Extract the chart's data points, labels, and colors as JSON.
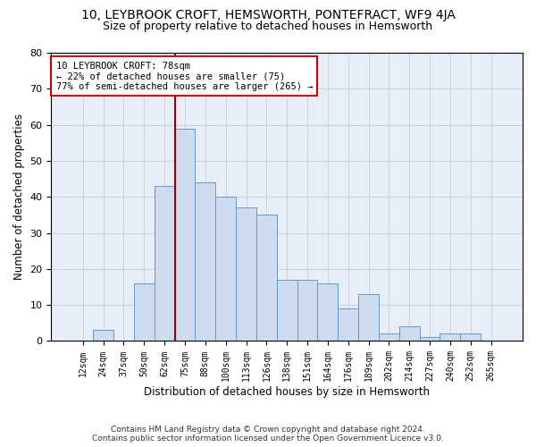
{
  "title1": "10, LEYBROOK CROFT, HEMSWORTH, PONTEFRACT, WF9 4JA",
  "title2": "Size of property relative to detached houses in Hemsworth",
  "xlabel": "Distribution of detached houses by size in Hemsworth",
  "ylabel": "Number of detached properties",
  "bar_labels": [
    "12sqm",
    "24sqm",
    "37sqm",
    "50sqm",
    "62sqm",
    "75sqm",
    "88sqm",
    "100sqm",
    "113sqm",
    "126sqm",
    "138sqm",
    "151sqm",
    "164sqm",
    "176sqm",
    "189sqm",
    "202sqm",
    "214sqm",
    "227sqm",
    "240sqm",
    "252sqm",
    "265sqm"
  ],
  "bar_heights": [
    0,
    3,
    0,
    16,
    43,
    59,
    44,
    40,
    37,
    35,
    17,
    17,
    16,
    9,
    13,
    2,
    4,
    1,
    2,
    2,
    0
  ],
  "bar_color": "#cddcef",
  "bar_edge_color": "#6699cc",
  "grid_color": "#c8d4e6",
  "background_color": "#e8eef8",
  "vline_x_index": 5,
  "vline_color": "#990000",
  "annotation_lines": [
    "10 LEYBROOK CROFT: 78sqm",
    "← 22% of detached houses are smaller (75)",
    "77% of semi-detached houses are larger (265) →"
  ],
  "annotation_box_color": "#ffffff",
  "annotation_box_edge": "#cc0000",
  "ylim": [
    0,
    80
  ],
  "yticks": [
    0,
    10,
    20,
    30,
    40,
    50,
    60,
    70,
    80
  ],
  "footer1": "Contains HM Land Registry data © Crown copyright and database right 2024.",
  "footer2": "Contains public sector information licensed under the Open Government Licence v3.0.",
  "title1_fontsize": 10,
  "title2_fontsize": 9,
  "tick_fontsize": 7,
  "ylabel_fontsize": 8.5,
  "xlabel_fontsize": 8.5,
  "footer_fontsize": 6.5,
  "ann_fontsize": 7.5
}
